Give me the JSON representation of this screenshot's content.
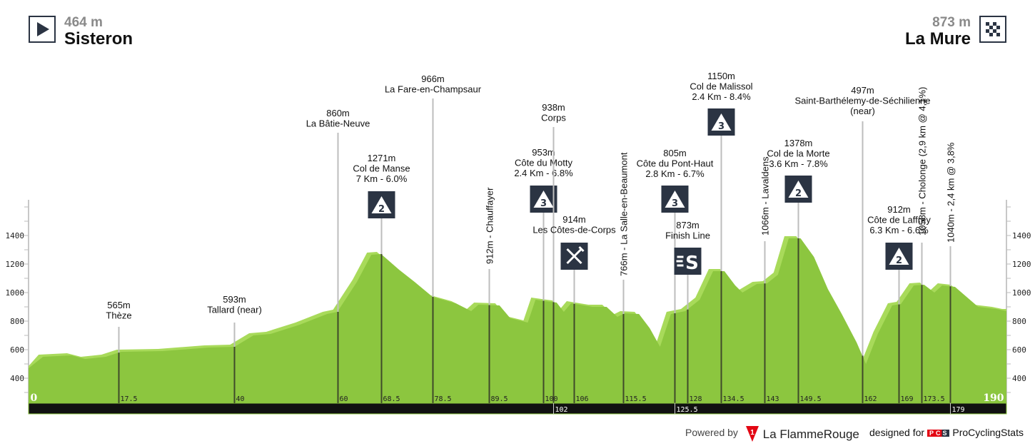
{
  "header": {
    "start": {
      "altitude": "464 m",
      "city": "Sisteron",
      "icon": "start-play-icon"
    },
    "finish": {
      "altitude": "873 m",
      "city": "La Mure",
      "icon": "checkered-flag-icon"
    }
  },
  "colors": {
    "profile": "#8cc63f",
    "profile_light": "#a8da5a",
    "badge": "#2b3443",
    "band": "#111111"
  },
  "footer": {
    "powered_by": "Powered by",
    "flamme_rouge": "La FlammeRouge",
    "designed_for": "designed for",
    "pcs_logo": "PCS",
    "pcs": "ProCyclingStats"
  },
  "chart_data": {
    "type": "area",
    "xlim": [
      0,
      190
    ],
    "ylim": [
      225,
      1650
    ],
    "y_ticks": [
      400,
      600,
      800,
      1000,
      1200,
      1400
    ],
    "x_ticks_top": [
      "0",
      "17.5",
      "40",
      "60",
      "68.5",
      "78.5",
      "89.5",
      "100",
      "106",
      "115.5",
      "128",
      "134.5",
      "143",
      "149.5",
      "162",
      "169",
      "173.5",
      "190"
    ],
    "x_ticks_bottom": [
      "102",
      "125.5",
      "179"
    ],
    "profile": [
      [
        0,
        470
      ],
      [
        2.8,
        550
      ],
      [
        8.3,
        560
      ],
      [
        11,
        535
      ],
      [
        15,
        550
      ],
      [
        18,
        585
      ],
      [
        26,
        590
      ],
      [
        35,
        615
      ],
      [
        40,
        620
      ],
      [
        43.7,
        700
      ],
      [
        47,
        710
      ],
      [
        52.7,
        775
      ],
      [
        58,
        850
      ],
      [
        60,
        865
      ],
      [
        63.8,
        1075
      ],
      [
        66.6,
        1265
      ],
      [
        68.5,
        1270
      ],
      [
        72,
        1160
      ],
      [
        75,
        1075
      ],
      [
        78.5,
        970
      ],
      [
        83,
        925
      ],
      [
        86,
        870
      ],
      [
        87.4,
        915
      ],
      [
        91.5,
        910
      ],
      [
        93.6,
        820
      ],
      [
        97,
        790
      ],
      [
        98.5,
        950
      ],
      [
        100.5,
        940
      ],
      [
        102.6,
        930
      ],
      [
        104,
        865
      ],
      [
        105.4,
        925
      ],
      [
        109.6,
        900
      ],
      [
        112.3,
        900
      ],
      [
        114.4,
        830
      ],
      [
        115.8,
        855
      ],
      [
        118.6,
        850
      ],
      [
        120.7,
        750
      ],
      [
        122.7,
        620
      ],
      [
        124.8,
        850
      ],
      [
        127.6,
        870
      ],
      [
        130.4,
        950
      ],
      [
        133,
        1150
      ],
      [
        135.2,
        1150
      ],
      [
        137.3,
        1050
      ],
      [
        138.7,
        1000
      ],
      [
        141.5,
        1060
      ],
      [
        143.5,
        1065
      ],
      [
        145.6,
        1125
      ],
      [
        147.7,
        1380
      ],
      [
        150,
        1380
      ],
      [
        152.6,
        1250
      ],
      [
        155.3,
        1025
      ],
      [
        158,
        850
      ],
      [
        160.9,
        650
      ],
      [
        162.7,
        500
      ],
      [
        165,
        710
      ],
      [
        167.8,
        910
      ],
      [
        169.5,
        920
      ],
      [
        172,
        1050
      ],
      [
        174,
        1055
      ],
      [
        176,
        1000
      ],
      [
        177.5,
        1050
      ],
      [
        180,
        1040
      ],
      [
        184.5,
        900
      ],
      [
        188,
        885
      ],
      [
        190,
        870
      ]
    ],
    "markers": [
      {
        "km": 17.5,
        "lines": [
          "565m",
          "Thèze"
        ]
      },
      {
        "km": 40,
        "lines": [
          "593m",
          "Tallard (near)"
        ]
      },
      {
        "km": 60,
        "lines": [
          "860m",
          "La Bâtie-Neuve"
        ]
      },
      {
        "km": 68.5,
        "lines": [
          "1271m",
          "Col de Manse",
          "7 Km - 6.0%"
        ],
        "badge": "2"
      },
      {
        "km": 78.5,
        "lines": [
          "966m",
          "La Fare-en-Champsaur"
        ]
      },
      {
        "km": 89.5,
        "vertical": "912m  -  Chauffayer"
      },
      {
        "km": 100,
        "lines": [
          "953m",
          "Côte du Motty",
          "2.4 Km - 6.8%"
        ],
        "badge": "3"
      },
      {
        "km": 102,
        "lines": [
          "938m",
          "Corps"
        ]
      },
      {
        "km": 106,
        "lines": [
          "914m",
          "Les Côtes-de-Corps"
        ],
        "icon": "feed-zone-icon"
      },
      {
        "km": 115.5,
        "vertical": "766m  -  La Salle-en-Beaumont"
      },
      {
        "km": 125.5,
        "lines": [
          "805m",
          "Côte du Pont-Haut",
          "2.8 Km - 6.7%"
        ],
        "badge": "3"
      },
      {
        "km": 128,
        "lines": [
          "873m",
          "Finish Line"
        ],
        "icon": "sprint-icon"
      },
      {
        "km": 134.5,
        "lines": [
          "1150m",
          "Col de Malissol",
          "2.4 Km - 8.4%"
        ],
        "badge": "3"
      },
      {
        "km": 143,
        "vertical": "1066m  -  Lavaldens"
      },
      {
        "km": 149.5,
        "lines": [
          "1378m",
          "Col de la Morte",
          "3.6 Km - 7.8%"
        ],
        "badge": "2"
      },
      {
        "km": 162,
        "lines": [
          "497m",
          "Saint-Barthélemy-de-Séchilienne",
          "(near)"
        ]
      },
      {
        "km": 169,
        "lines": [
          "912m",
          "Côte de Laffrey",
          "6.3 Km - 6.6%"
        ],
        "badge": "2"
      },
      {
        "km": 173.5,
        "vertical": "1058m  -  Cholonge (2,9 km @ 4,1%)"
      },
      {
        "km": 179,
        "vertical": "1040m  -  2,4 km @ 3,8%"
      }
    ]
  }
}
